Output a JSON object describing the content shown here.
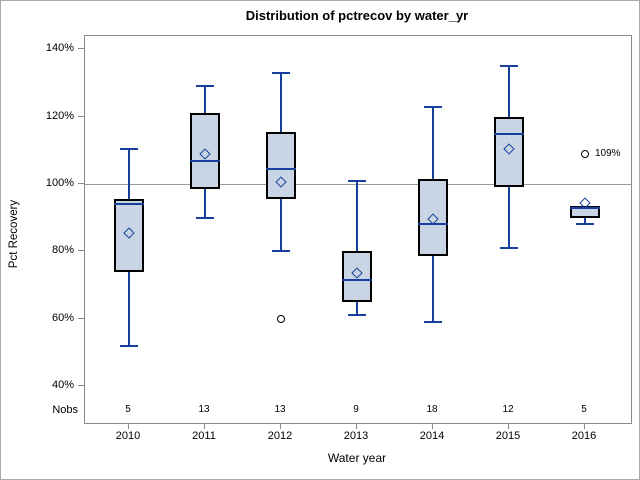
{
  "title": "Distribution of pctrecov by water_yr",
  "chart_data": {
    "type": "boxplot",
    "title": "Distribution of pctrecov by water_yr",
    "xlabel": "Water year",
    "ylabel": "Pct Recovery",
    "y_tick_values": [
      140,
      120,
      100,
      80,
      60,
      40
    ],
    "y_tick_labels": [
      "140%",
      "120%",
      "100%",
      "80%",
      "60%",
      "40%"
    ],
    "ylim": [
      29,
      144
    ],
    "reference_line": 100,
    "grid": false,
    "legend": "none",
    "nobs_label": "Nobs",
    "categories": [
      "2010",
      "2011",
      "2012",
      "2013",
      "2014",
      "2015",
      "2016"
    ],
    "nobs": [
      5,
      13,
      13,
      9,
      18,
      12,
      5
    ],
    "boxes": [
      {
        "category": "2010",
        "whisker_low": 52,
        "q1": 74,
        "median": 94,
        "q3": 95.5,
        "mean": 85.5,
        "whisker_high": 110.5,
        "outliers": []
      },
      {
        "category": "2011",
        "whisker_low": 90,
        "q1": 98.5,
        "median": 107,
        "q3": 121,
        "mean": 109,
        "whisker_high": 129,
        "outliers": []
      },
      {
        "category": "2012",
        "whisker_low": 80,
        "q1": 95.5,
        "median": 104.5,
        "q3": 115.5,
        "mean": 100.5,
        "whisker_high": 133,
        "outliers": [
          {
            "value": 60,
            "label": ""
          }
        ]
      },
      {
        "category": "2013",
        "whisker_low": 61,
        "q1": 65,
        "median": 71.5,
        "q3": 80,
        "mean": 73.5,
        "whisker_high": 101,
        "outliers": []
      },
      {
        "category": "2014",
        "whisker_low": 59,
        "q1": 78.5,
        "median": 88,
        "q3": 101.5,
        "mean": 89.5,
        "whisker_high": 123,
        "outliers": []
      },
      {
        "category": "2015",
        "whisker_low": 81,
        "q1": 99,
        "median": 115,
        "q3": 120,
        "mean": 110.5,
        "whisker_high": 135,
        "outliers": []
      },
      {
        "category": "2016",
        "whisker_low": 88,
        "q1": 90,
        "median": 93,
        "q3": 93.5,
        "mean": 94.5,
        "whisker_high": 93.5,
        "outliers": [
          {
            "value": 109,
            "label": "109%"
          }
        ]
      }
    ],
    "colors": {
      "box_fill": "#c9d4e4",
      "box_border": "#000000",
      "line": "#16409c",
      "axis": "#8a8a8a",
      "reference": "#9a9a9a",
      "text": "#000000"
    }
  }
}
